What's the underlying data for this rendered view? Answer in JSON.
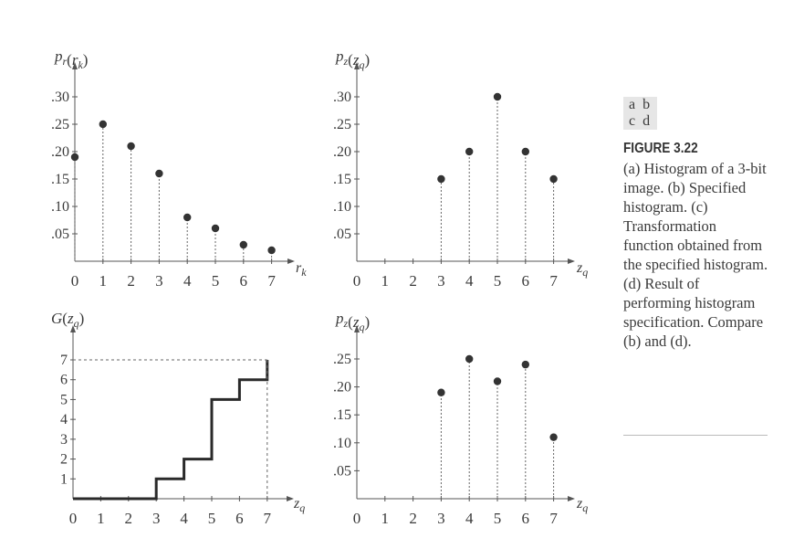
{
  "chart_data": [
    {
      "panel": "a",
      "type": "scatter",
      "stem": true,
      "ylabel": "p_r(r_k)",
      "xlabel": "r_k",
      "x": [
        0,
        1,
        2,
        3,
        4,
        5,
        6,
        7
      ],
      "values": [
        0.19,
        0.25,
        0.21,
        0.16,
        0.08,
        0.06,
        0.03,
        0.02
      ],
      "xlim": [
        0,
        7
      ],
      "ylim": [
        0,
        0.3
      ],
      "xticks": [
        "0",
        "1",
        "2",
        "3",
        "4",
        "5",
        "6",
        "7"
      ],
      "yticks": [
        ".05",
        ".10",
        ".15",
        ".20",
        ".25",
        ".30"
      ]
    },
    {
      "panel": "b",
      "type": "scatter",
      "stem": true,
      "ylabel": "p_z(z_q)",
      "xlabel": "z_q",
      "x": [
        0,
        1,
        2,
        3,
        4,
        5,
        6,
        7
      ],
      "values": [
        0,
        0,
        0,
        0.15,
        0.2,
        0.3,
        0.2,
        0.15
      ],
      "xlim": [
        0,
        7
      ],
      "ylim": [
        0,
        0.3
      ],
      "xticks": [
        "0",
        "1",
        "2",
        "3",
        "4",
        "5",
        "6",
        "7"
      ],
      "yticks": [
        ".05",
        ".10",
        ".15",
        ".20",
        ".25",
        ".30"
      ]
    },
    {
      "panel": "c",
      "type": "line",
      "step": true,
      "ylabel": "G(z_q)",
      "xlabel": "z_q",
      "x": [
        0,
        1,
        2,
        3,
        4,
        5,
        6,
        7
      ],
      "values": [
        0,
        0,
        0,
        1,
        2,
        5,
        6,
        7
      ],
      "xlim": [
        0,
        7
      ],
      "ylim": [
        0,
        7
      ],
      "xticks": [
        "0",
        "1",
        "2",
        "3",
        "4",
        "5",
        "6",
        "7"
      ],
      "yticks": [
        "1",
        "2",
        "3",
        "4",
        "5",
        "6",
        "7"
      ]
    },
    {
      "panel": "d",
      "type": "scatter",
      "stem": true,
      "ylabel": "p_z(z_q)",
      "xlabel": "z_q",
      "x": [
        0,
        1,
        2,
        3,
        4,
        5,
        6,
        7
      ],
      "values": [
        0,
        0,
        0,
        0.19,
        0.25,
        0.21,
        0.24,
        0.11
      ],
      "xlim": [
        0,
        7
      ],
      "ylim": [
        0,
        0.3
      ],
      "xticks": [
        "0",
        "1",
        "2",
        "3",
        "4",
        "5",
        "6",
        "7"
      ],
      "yticks": [
        ".05",
        ".10",
        ".15",
        ".20",
        ".25"
      ]
    }
  ],
  "caption": {
    "panel_letters_row1": "a b",
    "panel_letters_row2": "c d",
    "figure_label": "FIGURE 3.22",
    "text": "(a) Histogram of a 3-bit image. (b) Specified histogram. (c) Transformation function obtained from the specified histogram. (d) Result of performing histogram specification. Compare (b) and (d)."
  }
}
